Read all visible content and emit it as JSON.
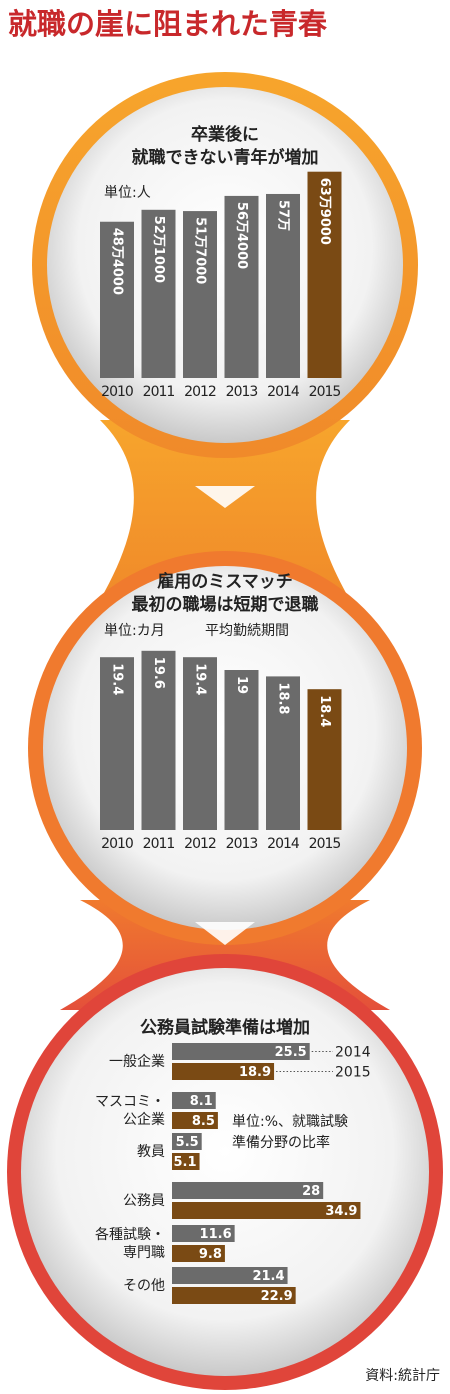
{
  "title": "就職の崖に阻まれた青春",
  "source": "資料:統計庁",
  "chart_data": [
    {
      "type": "bar",
      "title": [
        "卒業後に",
        "就職できない青年が増加"
      ],
      "unit": "単位:人",
      "categories": [
        "2010",
        "2011",
        "2012",
        "2013",
        "2014",
        "2015"
      ],
      "values": [
        484000,
        521000,
        517000,
        564000,
        570000,
        639000
      ],
      "value_labels": [
        "48万4000",
        "52万1000",
        "51万7000",
        "56万4000",
        "57万",
        "63万9000"
      ],
      "colors": [
        "#6b6b6b",
        "#6b6b6b",
        "#6b6b6b",
        "#6b6b6b",
        "#6b6b6b",
        "#7a4a14"
      ],
      "ylim": [
        0,
        700000
      ]
    },
    {
      "type": "bar",
      "title": [
        "雇用のミスマッチ",
        "最初の職場は短期で退職"
      ],
      "unit": "単位:カ月",
      "subtitle": "平均勤続期間",
      "categories": [
        "2010",
        "2011",
        "2012",
        "2013",
        "2014",
        "2015"
      ],
      "values": [
        19.4,
        19.6,
        19.4,
        19,
        18.8,
        18.4
      ],
      "colors": [
        "#6b6b6b",
        "#6b6b6b",
        "#6b6b6b",
        "#6b6b6b",
        "#6b6b6b",
        "#7a4a14"
      ],
      "ylim": [
        14,
        20
      ]
    },
    {
      "type": "hbar",
      "title": [
        "公務員試験準備は増加"
      ],
      "categories": [
        [
          "一般企業"
        ],
        [
          "マスコミ・",
          "公企業"
        ],
        [
          "教員"
        ],
        [
          "公務員"
        ],
        [
          "各種試験・",
          "専門職"
        ],
        [
          "その他"
        ]
      ],
      "series": [
        {
          "name": "2014",
          "color": "#6b6b6b",
          "values": [
            25.5,
            8.1,
            5.5,
            28,
            11.6,
            21.4
          ]
        },
        {
          "name": "2015",
          "color": "#7a4a14",
          "values": [
            18.9,
            8.5,
            5.1,
            34.9,
            9.8,
            22.9
          ]
        }
      ],
      "note": [
        "単位:%、就職試験",
        "準備分野の比率"
      ],
      "xlim": [
        0,
        35
      ]
    }
  ]
}
